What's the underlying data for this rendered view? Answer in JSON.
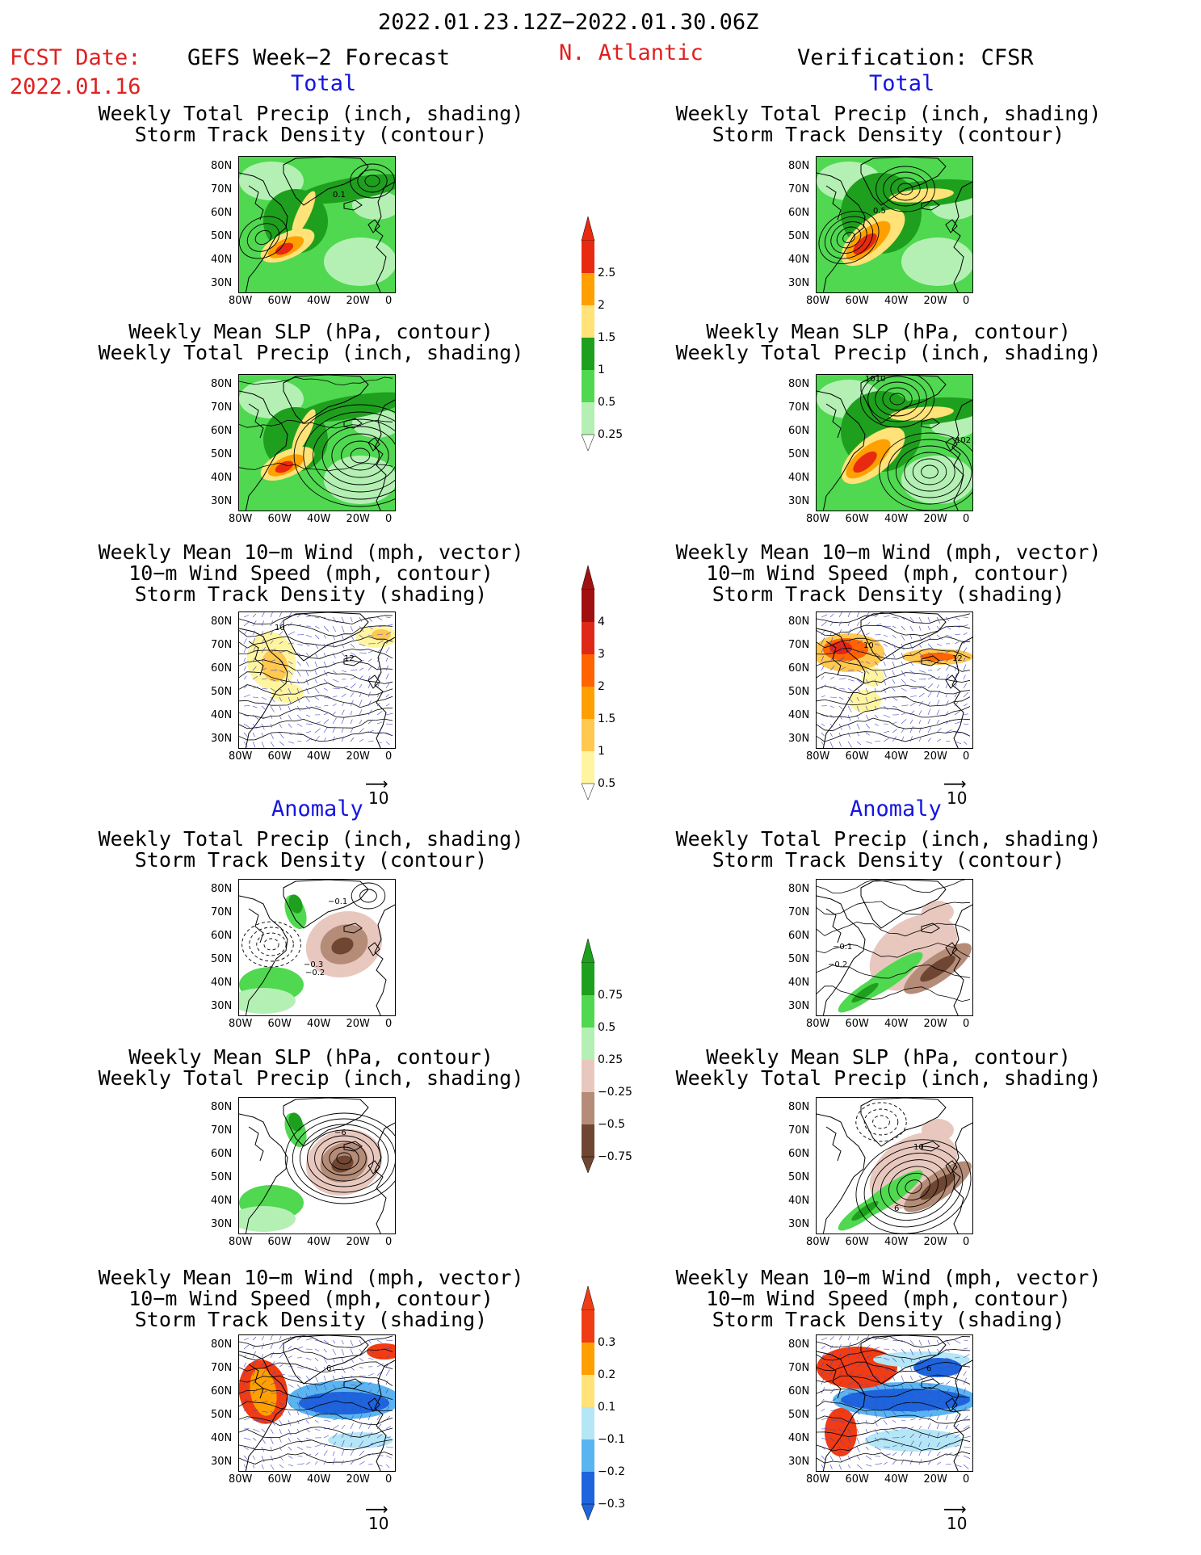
{
  "header": {
    "period": "2022.01.23.12Z−2022.01.30.06Z",
    "fcst_date_label": "FCST Date:",
    "fcst_date_value": "2022.01.16",
    "left_title": "GEFS Week−2 Forecast",
    "region": "N. Atlantic",
    "right_title": "Verification: CFSR"
  },
  "sections": {
    "total": "Total",
    "anomaly": "Anomaly"
  },
  "panel_titles": {
    "precip_track": [
      "Weekly Total Precip (inch, shading)",
      "Storm Track Density (contour)"
    ],
    "slp_precip": [
      "Weekly Mean SLP (hPa, contour)",
      "Weekly Total Precip (inch, shading)"
    ],
    "wind_track": [
      "Weekly Mean 10−m Wind (mph, vector)",
      "10−m Wind Speed (mph, contour)",
      "Storm Track Density (shading)"
    ]
  },
  "axes": {
    "lat_labels": [
      "80N",
      "70N",
      "60N",
      "50N",
      "40N",
      "30N"
    ],
    "lon_labels": [
      "80W",
      "60W",
      "40W",
      "20W",
      "0"
    ]
  },
  "ref_vector": "10",
  "colorbars": {
    "precip_total": {
      "labels": [
        "2.5",
        "2",
        "1.5",
        "1",
        "0.5",
        "0.25"
      ],
      "colors": [
        "#e82a10",
        "#ffa000",
        "#ffe278",
        "#1ea01e",
        "#50d850",
        "#b4f0b4"
      ]
    },
    "track_total": {
      "labels": [
        "4",
        "3",
        "2",
        "1.5",
        "1",
        "0.5"
      ],
      "colors": [
        "#a01010",
        "#e02818",
        "#ff6400",
        "#ffa000",
        "#ffc850",
        "#fff5a0"
      ]
    },
    "precip_anom": {
      "labels": [
        "0.75",
        "0.5",
        "0.25",
        "−0.25",
        "−0.5",
        "−0.75"
      ],
      "colors": [
        "#1ea01e",
        "#50d850",
        "#b4f0b4",
        "#e8c8be",
        "#b48c78",
        "#6e4632"
      ]
    },
    "track_anom": {
      "labels": [
        "0.3",
        "0.2",
        "0.1",
        "−0.1",
        "−0.2",
        "−0.3"
      ],
      "colors": [
        "#f03c14",
        "#ffa000",
        "#ffe278",
        "#b4e6f5",
        "#5ab4f0",
        "#1e64dc"
      ]
    }
  },
  "map_labels": {
    "fcst_track_contour": "0.1",
    "obs_track_contour": "0.5",
    "obs_slp_high": "1010",
    "obs_slp_1020": "102",
    "fcst_wind_a": "10",
    "fcst_wind_b": "12",
    "obs_wind_a": "10",
    "obs_wind_b": "12",
    "anom_fcst_a": "−0.1",
    "anom_fcst_b": "−0.3",
    "anom_fcst_c": "−0.2",
    "anom_obs_a": "−0.1",
    "anom_obs_b": "−0.2",
    "anom_slp_fcst": "−6",
    "anom_slp_obs_a": "10",
    "anom_slp_obs_b": "6",
    "anom_wind_fcst": "6",
    "anom_wind_obs": "6"
  }
}
